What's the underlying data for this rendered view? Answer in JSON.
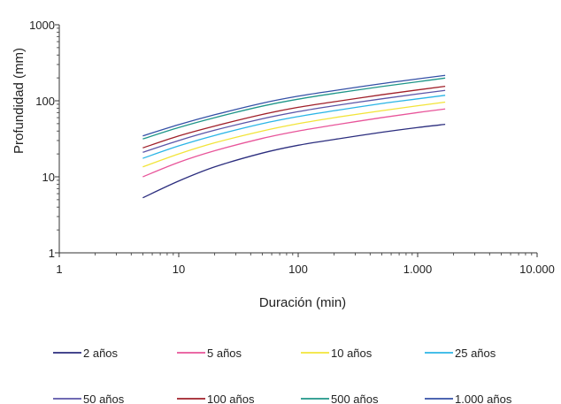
{
  "chart_data": {
    "type": "line",
    "title": "",
    "xlabel": "Duración (min)",
    "ylabel": "Profundidad (mm)",
    "x_scale": "log",
    "y_scale": "log",
    "xlim": [
      1,
      10000
    ],
    "ylim": [
      1,
      1000
    ],
    "x_ticks": [
      1,
      10,
      100,
      1000,
      10000
    ],
    "x_tick_labels": [
      "1",
      "10",
      "100",
      "1.000",
      "10.000"
    ],
    "y_ticks": [
      1,
      10,
      100,
      1000
    ],
    "y_tick_labels": [
      "1",
      "10",
      "100",
      "1000"
    ],
    "grid": false,
    "legend_position": "bottom",
    "x": [
      5,
      10,
      20,
      50,
      100,
      200,
      500,
      1000,
      1700
    ],
    "series": [
      {
        "name": "2 años",
        "color": "#2b2d7e",
        "values": [
          5.3,
          8.8,
          13.5,
          20.5,
          26,
          31,
          38.5,
          44.5,
          49
        ]
      },
      {
        "name": "5 años",
        "color": "#e8559a",
        "values": [
          10,
          15.5,
          22,
          32,
          40,
          48,
          60,
          70,
          78
        ]
      },
      {
        "name": "10 años",
        "color": "#f2e43a",
        "values": [
          13.5,
          20,
          28,
          40,
          50,
          60,
          74,
          86,
          96
        ]
      },
      {
        "name": "25 años",
        "color": "#2bb5e6",
        "values": [
          17.5,
          25.5,
          35,
          50,
          62,
          74,
          92,
          106,
          118
        ]
      },
      {
        "name": "50 años",
        "color": "#5b55a8",
        "values": [
          21,
          30,
          41,
          58,
          72,
          86,
          106,
          123,
          137
        ]
      },
      {
        "name": "100 años",
        "color": "#a0202a",
        "values": [
          24,
          34.5,
          46.5,
          66,
          82,
          97,
          120,
          139,
          155
        ]
      },
      {
        "name": "500 años",
        "color": "#1f9688",
        "values": [
          31.5,
          44.5,
          60,
          85,
          105,
          125,
          154,
          178,
          199
        ]
      },
      {
        "name": "1.000 años",
        "color": "#3450a6",
        "values": [
          34.5,
          48.5,
          65.5,
          93,
          115,
          136,
          168,
          194,
          216
        ]
      }
    ]
  }
}
